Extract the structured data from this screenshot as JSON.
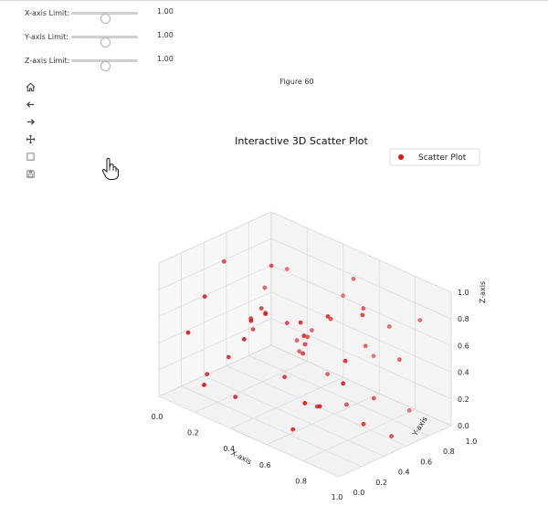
{
  "sliders": [
    {
      "label": "X-axis Limit:",
      "value": "1.00",
      "level": 0.5
    },
    {
      "label": "Y-axis Limit:",
      "value": "1.00",
      "level": 0.5
    },
    {
      "label": "Z-axis Limit:",
      "value": "1.00",
      "level": 0.5
    }
  ],
  "figure_label": "Figure 60",
  "toolbar": {
    "icons": [
      "home-icon",
      "back-icon",
      "forward-icon",
      "pan-icon",
      "zoom-icon",
      "save-icon"
    ]
  },
  "chart_data": {
    "type": "scatter",
    "title": "Interactive 3D Scatter Plot",
    "xlabel": "X-axis",
    "ylabel": "Y-axis",
    "zlabel": "Z-axis",
    "xlim": [
      0,
      1
    ],
    "ylim": [
      0,
      1
    ],
    "zlim": [
      0,
      1
    ],
    "xticks": [
      "0.0",
      "0.2",
      "0.4",
      "0.6",
      "0.8",
      "1.0"
    ],
    "yticks": [
      "0.0",
      "0.2",
      "0.4",
      "0.6",
      "0.8",
      "1.0"
    ],
    "zticks": [
      "0.0",
      "0.2",
      "0.4",
      "0.6",
      "0.8",
      "1.0"
    ],
    "legend": {
      "label": "Scatter Plot",
      "position": "top-right"
    },
    "grid": true,
    "marker_color": "#d7191c",
    "points": [
      [
        0.1,
        0.1,
        0.5
      ],
      [
        0.15,
        0.9,
        0.7
      ],
      [
        0.2,
        0.3,
        0.3
      ],
      [
        0.25,
        0.6,
        0.9
      ],
      [
        0.3,
        0.2,
        0.1
      ],
      [
        0.35,
        0.8,
        0.4
      ],
      [
        0.4,
        0.5,
        0.6
      ],
      [
        0.45,
        0.1,
        0.8
      ],
      [
        0.5,
        0.7,
        0.2
      ],
      [
        0.55,
        0.4,
        0.5
      ],
      [
        0.6,
        0.95,
        0.3
      ],
      [
        0.65,
        0.25,
        0.75
      ],
      [
        0.7,
        0.55,
        0.15
      ],
      [
        0.75,
        0.85,
        0.65
      ],
      [
        0.8,
        0.15,
        0.35
      ],
      [
        0.85,
        0.45,
        0.95
      ],
      [
        0.9,
        0.7,
        0.55
      ],
      [
        0.95,
        0.3,
        0.25
      ],
      [
        0.05,
        0.5,
        0.85
      ],
      [
        0.12,
        0.75,
        0.6
      ],
      [
        0.22,
        0.05,
        0.2
      ],
      [
        0.32,
        0.4,
        0.7
      ],
      [
        0.42,
        0.65,
        0.45
      ],
      [
        0.52,
        0.9,
        0.85
      ],
      [
        0.62,
        0.2,
        0.05
      ],
      [
        0.72,
        0.35,
        0.9
      ],
      [
        0.82,
        0.6,
        0.25
      ],
      [
        0.92,
        0.85,
        0.8
      ],
      [
        0.08,
        0.3,
        0.1
      ],
      [
        0.18,
        0.55,
        0.4
      ],
      [
        0.28,
        0.8,
        0.2
      ],
      [
        0.38,
        0.15,
        0.6
      ],
      [
        0.48,
        0.35,
        0.3
      ],
      [
        0.58,
        0.6,
        0.7
      ],
      [
        0.68,
        0.75,
        0.5
      ],
      [
        0.78,
        0.05,
        0.4
      ],
      [
        0.88,
        0.25,
        0.7
      ],
      [
        0.98,
        0.5,
        0.1
      ],
      [
        0.03,
        0.9,
        0.3
      ],
      [
        0.13,
        0.2,
        0.75
      ],
      [
        0.23,
        0.45,
        0.55
      ],
      [
        0.33,
        0.7,
        0.35
      ],
      [
        0.43,
        0.95,
        0.65
      ],
      [
        0.53,
        0.1,
        0.9
      ],
      [
        0.63,
        0.4,
        0.15
      ],
      [
        0.73,
        0.65,
        0.85
      ],
      [
        0.83,
        0.9,
        0.05
      ],
      [
        0.93,
        0.15,
        0.6
      ],
      [
        0.5,
        0.5,
        0.5
      ],
      [
        0.6,
        0.3,
        0.8
      ]
    ]
  }
}
